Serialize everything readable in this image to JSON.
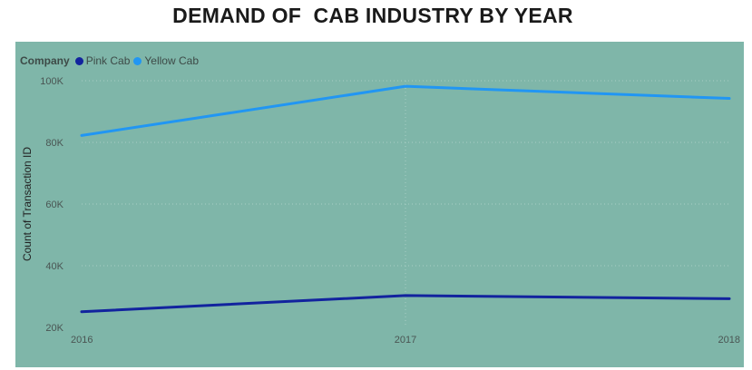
{
  "chart_data": {
    "type": "line",
    "title": "DEMAND OF  CAB INDUSTRY BY YEAR",
    "xlabel": "",
    "ylabel": "Count of Transaction ID",
    "legend_title": "Company",
    "legend_position": "top-left",
    "x": [
      "2016",
      "2017",
      "2018"
    ],
    "y_ticks": [
      "20K",
      "40K",
      "60K",
      "80K",
      "100K"
    ],
    "ylim": [
      20000,
      100000
    ],
    "grid": true,
    "series": [
      {
        "name": "Pink Cab",
        "color": "#12239e",
        "values": [
          25080,
          30321,
          29310
        ]
      },
      {
        "name": "Yellow Cab",
        "color": "#2196f3",
        "values": [
          82239,
          98189,
          94253
        ]
      }
    ]
  }
}
